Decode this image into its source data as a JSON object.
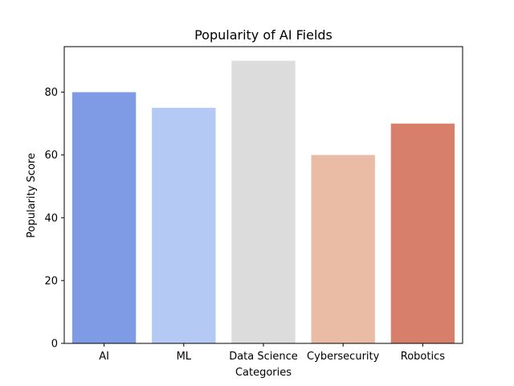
{
  "chart_data": {
    "type": "bar",
    "title": "Popularity of AI Fields",
    "xlabel": "Categories",
    "ylabel": "Popularity Score",
    "categories": [
      "AI",
      "ML",
      "Data Science",
      "Cybersecurity",
      "Robotics"
    ],
    "values": [
      80,
      75,
      90,
      60,
      70
    ],
    "colors": [
      "#7f9be6",
      "#b4c9f4",
      "#dcdcdc",
      "#ebbca5",
      "#d77f6b"
    ],
    "ylim": [
      0,
      94.5
    ],
    "yticks": [
      0,
      20,
      40,
      60,
      80
    ],
    "grid": false
  }
}
